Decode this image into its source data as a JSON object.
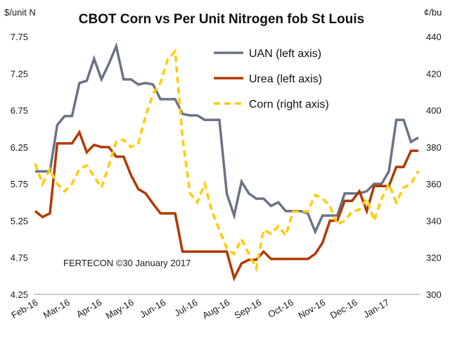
{
  "chart_data": {
    "type": "line",
    "title": "CBOT Corn vs Per Unit Nitrogen fob St Louis",
    "ylabel_left": "$/unit  N",
    "ylabel_right": "¢/bu",
    "annotation": "FERTECON  ©30 January 2017",
    "x_tick_labels": [
      "Feb-16",
      "Mar-16",
      "Apr-16",
      "May-16",
      "Jun-16",
      "Jul-16",
      "Aug-16",
      "Sep-16",
      "Oct-16",
      "Nov-16",
      "Dec-16",
      "Jan-17"
    ],
    "ylim_left": [
      4.25,
      7.75
    ],
    "yticks_left": [
      "4.25",
      "4.75",
      "5.25",
      "5.75",
      "6.25",
      "6.75",
      "7.25",
      "7.75"
    ],
    "ylim_right": [
      300,
      440
    ],
    "yticks_right": [
      "300",
      "320",
      "340",
      "360",
      "380",
      "400",
      "420",
      "440"
    ],
    "legend_position": "top-right",
    "grid": false,
    "series": [
      {
        "name": "UAN (left axis)",
        "axis": "left",
        "color": "#6b7385",
        "style": "solid",
        "values": [
          5.92,
          5.92,
          5.92,
          6.55,
          6.67,
          6.67,
          7.12,
          7.15,
          7.45,
          7.17,
          7.38,
          7.62,
          7.17,
          7.17,
          7.1,
          7.12,
          7.1,
          6.9,
          6.9,
          6.9,
          6.7,
          6.68,
          6.68,
          6.62,
          6.62,
          6.62,
          5.62,
          5.32,
          5.78,
          5.62,
          5.55,
          5.55,
          5.45,
          5.5,
          5.38,
          5.38,
          5.38,
          5.35,
          5.1,
          5.32,
          5.32,
          5.32,
          5.62,
          5.62,
          5.62,
          5.65,
          5.75,
          5.75,
          5.92,
          6.62,
          6.62,
          6.32,
          6.38
        ]
      },
      {
        "name": "Urea (left axis)",
        "axis": "left",
        "color": "#b03a00",
        "style": "solid",
        "values": [
          5.38,
          5.3,
          5.35,
          6.3,
          6.3,
          6.3,
          6.45,
          6.18,
          6.28,
          6.25,
          6.25,
          6.12,
          6.12,
          5.87,
          5.68,
          5.62,
          5.48,
          5.35,
          5.35,
          5.35,
          4.83,
          4.83,
          4.83,
          4.83,
          4.83,
          4.83,
          4.83,
          4.47,
          4.67,
          4.72,
          4.72,
          4.83,
          4.73,
          4.73,
          4.73,
          4.73,
          4.73,
          4.73,
          4.8,
          4.95,
          5.25,
          5.25,
          5.52,
          5.52,
          5.65,
          5.38,
          5.72,
          5.72,
          5.72,
          5.98,
          5.98,
          6.2,
          6.2
        ]
      },
      {
        "name": "Corn (right axis)",
        "axis": "right",
        "color": "#ffcc00",
        "style": "dashed",
        "values": [
          371,
          360,
          368,
          360,
          356,
          360,
          368,
          370,
          364,
          358,
          370,
          383,
          384,
          380,
          382,
          397,
          409,
          415,
          428,
          432,
          385,
          355,
          350,
          360,
          345,
          335,
          325,
          322,
          330,
          322,
          314,
          335,
          333,
          337,
          332,
          345,
          345,
          345,
          354,
          352,
          348,
          338,
          340,
          345,
          346,
          352,
          340,
          352,
          360,
          350,
          358,
          360,
          367
        ]
      }
    ]
  }
}
